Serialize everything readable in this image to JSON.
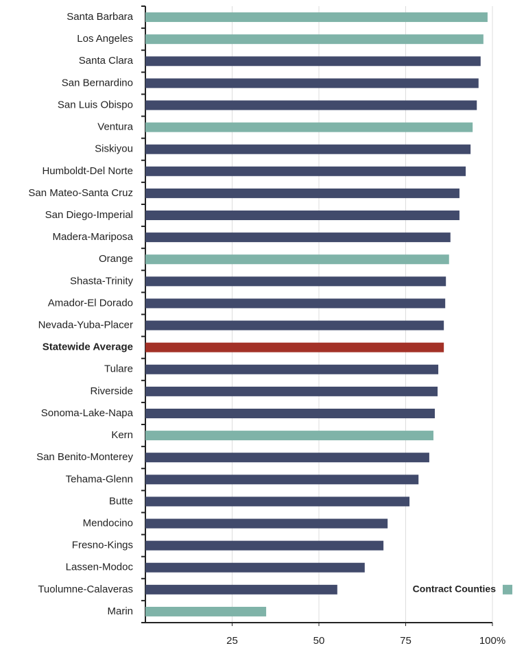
{
  "chart_data": {
    "type": "bar",
    "orientation": "horizontal",
    "categories": [
      "Santa Barbara",
      "Los Angeles",
      "Santa Clara",
      "San Bernardino",
      "San Luis Obispo",
      "Ventura",
      "Siskiyou",
      "Humboldt-Del Norte",
      "San Mateo-Santa Cruz",
      "San Diego-Imperial",
      "Madera-Mariposa",
      "Orange",
      "Shasta-Trinity",
      "Amador-El Dorado",
      "Nevada-Yuba-Placer",
      "Statewide Average",
      "Tulare",
      "Riverside",
      "Sonoma-Lake-Napa",
      "Kern",
      "San Benito-Monterey",
      "Tehama-Glenn",
      "Butte",
      "Mendocino",
      "Fresno-Kings",
      "Lassen-Modoc",
      "Tuolumne-Calaveras",
      "Marin"
    ],
    "values": [
      98.6,
      97.4,
      96.6,
      96,
      95.5,
      94.3,
      93.7,
      92.3,
      90.5,
      90.5,
      87.9,
      87.5,
      86.6,
      86.4,
      86,
      86,
      84.4,
      84.2,
      83.4,
      83,
      81.8,
      78.7,
      76.1,
      69.8,
      68.6,
      63.2,
      55.3,
      34.8
    ],
    "colors": [
      "#7fb3a8",
      "#7fb3a8",
      "#414a6b",
      "#414a6b",
      "#414a6b",
      "#7fb3a8",
      "#414a6b",
      "#414a6b",
      "#414a6b",
      "#414a6b",
      "#414a6b",
      "#7fb3a8",
      "#414a6b",
      "#414a6b",
      "#414a6b",
      "#a33127",
      "#414a6b",
      "#414a6b",
      "#414a6b",
      "#7fb3a8",
      "#414a6b",
      "#414a6b",
      "#414a6b",
      "#414a6b",
      "#414a6b",
      "#414a6b",
      "#414a6b",
      "#7fb3a8"
    ],
    "highlight_color": "#a33127",
    "legend": {
      "label": "Contract Counties",
      "color": "#7fb3a8",
      "position": "lower right"
    },
    "xlim": [
      0,
      100
    ],
    "xticks": [
      25,
      50,
      75,
      {
        "value": 100,
        "label": "100%"
      }
    ],
    "grid": true
  }
}
